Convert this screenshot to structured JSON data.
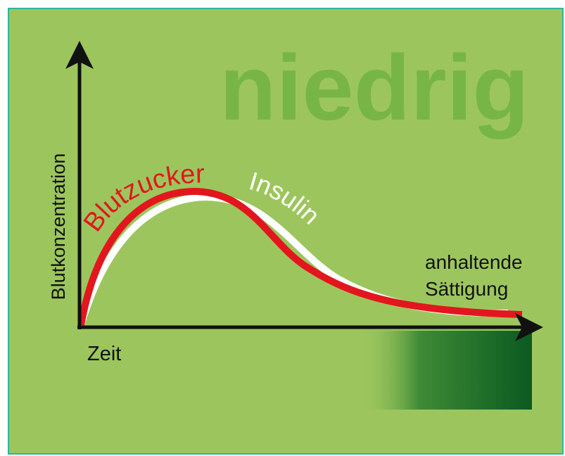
{
  "title": "niedrig",
  "y_axis_label": "Blutkonzentration",
  "x_axis_label": "Zeit",
  "curves": [
    {
      "label": "Blutzucker"
    },
    {
      "label": "Insulin"
    }
  ],
  "annotation": [
    "anhaltende",
    "Sättigung"
  ]
}
